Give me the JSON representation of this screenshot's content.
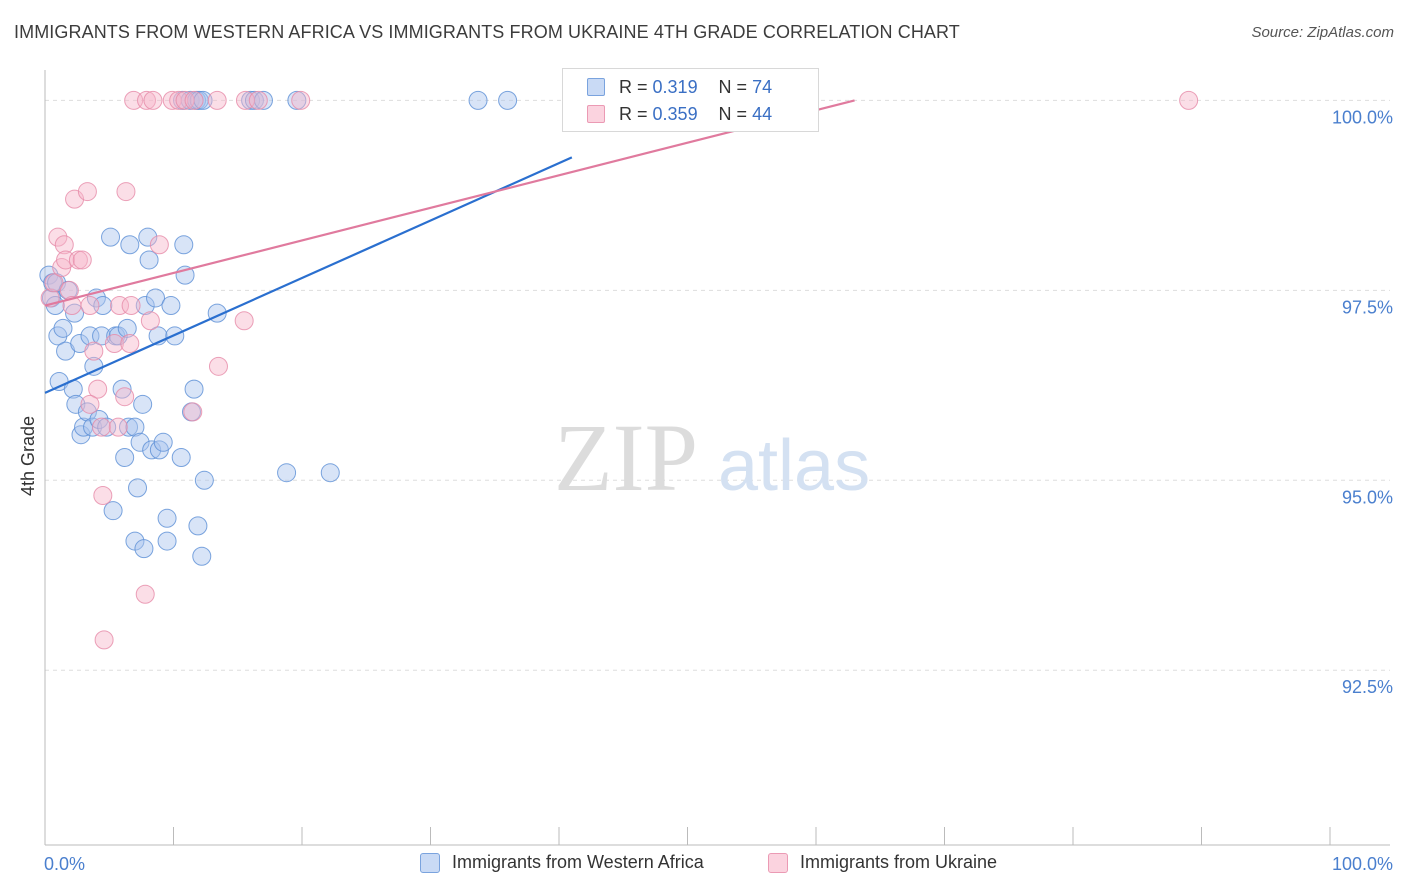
{
  "title": "IMMIGRANTS FROM WESTERN AFRICA VS IMMIGRANTS FROM UKRAINE 4TH GRADE CORRELATION CHART",
  "source": "Source: ZipAtlas.com",
  "watermark": {
    "zip": "ZIP",
    "atlas": "atlas"
  },
  "legend": {
    "r_label": "R =",
    "n_label": "N =",
    "rows": [
      {
        "r": "0.319",
        "n": "74",
        "color": "#a9c4ee"
      },
      {
        "r": "0.359",
        "n": "44",
        "color": "#f6b6c9"
      }
    ]
  },
  "bottom_legend": [
    {
      "label": "Immigrants from Western Africa",
      "color": "#a9c4ee"
    },
    {
      "label": "Immigrants from Ukraine",
      "color": "#f6b6c9"
    }
  ],
  "chart_data": {
    "type": "scatter",
    "title": "IMMIGRANTS FROM WESTERN AFRICA VS IMMIGRANTS FROM UKRAINE 4TH GRADE CORRELATION CHART",
    "xlabel": "",
    "ylabel": "4th Grade",
    "xlim": [
      0,
      100
    ],
    "ylim": [
      90.2,
      100.4
    ],
    "x_tick_labels": [
      "0.0%",
      "100.0%"
    ],
    "y_ticks": [
      100.0,
      97.5,
      95.0,
      92.5
    ],
    "y_tick_labels": [
      "100.0%",
      "97.5%",
      "95.0%",
      "92.5%"
    ],
    "grid": true,
    "series": [
      {
        "name": "Immigrants from Western Africa",
        "color": "#5b8fd6",
        "fill": "#a9c4ee",
        "trend": {
          "x": [
            0,
            41
          ],
          "y": [
            96.15,
            99.25
          ],
          "color": "#2a6fcf"
        },
        "points": [
          [
            0.3,
            97.7
          ],
          [
            0.5,
            97.4
          ],
          [
            0.6,
            97.6
          ],
          [
            0.8,
            97.3
          ],
          [
            0.9,
            97.6
          ],
          [
            1.0,
            96.9
          ],
          [
            1.1,
            96.3
          ],
          [
            1.4,
            97.0
          ],
          [
            1.6,
            96.7
          ],
          [
            1.8,
            97.5
          ],
          [
            2.2,
            96.2
          ],
          [
            2.3,
            97.2
          ],
          [
            2.4,
            96.0
          ],
          [
            2.7,
            96.8
          ],
          [
            2.8,
            95.6
          ],
          [
            3.0,
            95.7
          ],
          [
            3.3,
            95.9
          ],
          [
            3.5,
            96.9
          ],
          [
            3.7,
            95.7
          ],
          [
            3.8,
            96.5
          ],
          [
            4.0,
            97.4
          ],
          [
            4.2,
            95.8
          ],
          [
            4.4,
            96.9
          ],
          [
            4.5,
            97.3
          ],
          [
            4.8,
            95.7
          ],
          [
            5.1,
            98.2
          ],
          [
            5.3,
            94.6
          ],
          [
            5.5,
            96.9
          ],
          [
            5.7,
            96.9
          ],
          [
            6.0,
            96.2
          ],
          [
            6.2,
            95.3
          ],
          [
            6.4,
            97.0
          ],
          [
            6.5,
            95.7
          ],
          [
            6.6,
            98.1
          ],
          [
            7.0,
            95.7
          ],
          [
            7.0,
            94.2
          ],
          [
            7.2,
            94.9
          ],
          [
            7.4,
            95.5
          ],
          [
            7.6,
            96.0
          ],
          [
            7.7,
            94.1
          ],
          [
            7.8,
            97.3
          ],
          [
            8.0,
            98.2
          ],
          [
            8.1,
            97.9
          ],
          [
            8.3,
            95.4
          ],
          [
            8.6,
            97.4
          ],
          [
            8.8,
            96.9
          ],
          [
            8.9,
            95.4
          ],
          [
            9.2,
            95.5
          ],
          [
            9.5,
            94.2
          ],
          [
            9.5,
            94.5
          ],
          [
            9.8,
            97.3
          ],
          [
            10.1,
            96.9
          ],
          [
            10.6,
            95.3
          ],
          [
            10.8,
            98.1
          ],
          [
            10.9,
            97.7
          ],
          [
            11.4,
            95.9
          ],
          [
            11.6,
            96.2
          ],
          [
            11.9,
            94.4
          ],
          [
            12.4,
            95.0
          ],
          [
            12.2,
            94.0
          ],
          [
            13.4,
            97.2
          ],
          [
            10.7,
            100.0
          ],
          [
            11.3,
            100.0
          ],
          [
            11.8,
            100.0
          ],
          [
            12.0,
            100.0
          ],
          [
            12.3,
            100.0
          ],
          [
            16.0,
            100.0
          ],
          [
            16.3,
            100.0
          ],
          [
            17.0,
            100.0
          ],
          [
            19.6,
            100.0
          ],
          [
            18.8,
            95.1
          ],
          [
            22.2,
            95.1
          ],
          [
            33.7,
            100.0
          ],
          [
            36.0,
            100.0
          ]
        ]
      },
      {
        "name": "Immigrants from Ukraine",
        "color": "#e68aa7",
        "fill": "#f6b6c9",
        "trend": {
          "x": [
            0,
            63
          ],
          "y": [
            97.3,
            100.0
          ],
          "color": "#e07a9e"
        },
        "points": [
          [
            0.4,
            97.4
          ],
          [
            0.7,
            97.6
          ],
          [
            1.0,
            98.2
          ],
          [
            1.3,
            97.8
          ],
          [
            1.5,
            98.1
          ],
          [
            1.6,
            97.9
          ],
          [
            1.9,
            97.5
          ],
          [
            2.3,
            98.7
          ],
          [
            2.6,
            97.9
          ],
          [
            2.9,
            97.9
          ],
          [
            3.3,
            98.8
          ],
          [
            3.5,
            97.3
          ],
          [
            3.8,
            96.7
          ],
          [
            4.1,
            96.2
          ],
          [
            4.4,
            95.7
          ],
          [
            4.5,
            94.8
          ],
          [
            4.6,
            92.9
          ],
          [
            5.4,
            96.8
          ],
          [
            5.7,
            95.7
          ],
          [
            5.8,
            97.3
          ],
          [
            6.2,
            96.1
          ],
          [
            6.3,
            98.8
          ],
          [
            6.6,
            96.8
          ],
          [
            6.7,
            97.3
          ],
          [
            7.8,
            93.5
          ],
          [
            8.2,
            97.1
          ],
          [
            8.9,
            98.1
          ],
          [
            11.5,
            95.9
          ],
          [
            13.5,
            96.5
          ],
          [
            15.5,
            97.1
          ],
          [
            6.9,
            100.0
          ],
          [
            7.9,
            100.0
          ],
          [
            8.4,
            100.0
          ],
          [
            9.9,
            100.0
          ],
          [
            10.4,
            100.0
          ],
          [
            10.9,
            100.0
          ],
          [
            11.6,
            100.0
          ],
          [
            13.4,
            100.0
          ],
          [
            15.6,
            100.0
          ],
          [
            16.6,
            100.0
          ],
          [
            19.9,
            100.0
          ],
          [
            89.0,
            100.0
          ],
          [
            3.5,
            96.0
          ],
          [
            2.1,
            97.3
          ]
        ]
      }
    ]
  }
}
